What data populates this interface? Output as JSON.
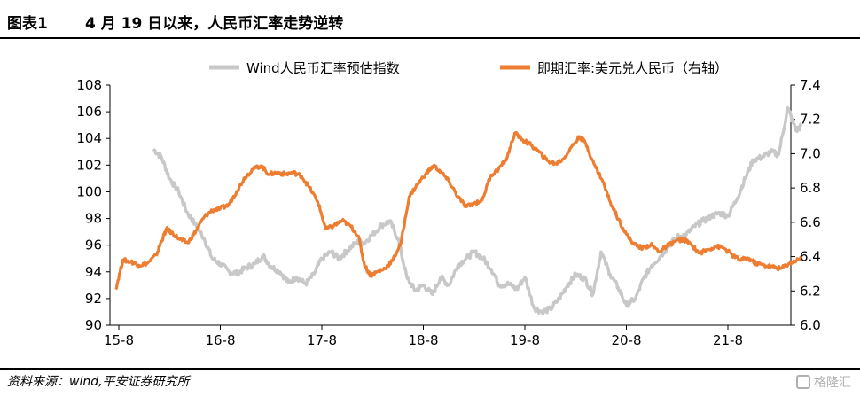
{
  "header": {
    "figure_label": "图表1",
    "figure_title": "4 月 19 日以来，人民币汇率走势逆转"
  },
  "footer": {
    "source": "资料来源：wind,平安证券研究所",
    "watermark": "格隆汇"
  },
  "colors": {
    "wind_index": "#c8c8c8",
    "spot_rate": "#ed7d31"
  },
  "chart_data": {
    "type": "line",
    "title": "",
    "x_ticks": [
      "15-8",
      "16-8",
      "17-8",
      "18-8",
      "19-8",
      "20-8",
      "21-8"
    ],
    "y_left": {
      "min": 90,
      "max": 108,
      "ticks": [
        "90",
        "92",
        "94",
        "96",
        "98",
        "100",
        "102",
        "104",
        "106",
        "108"
      ]
    },
    "y_right": {
      "min": 6.0,
      "max": 7.4,
      "ticks": [
        "6.0",
        "6.2",
        "6.4",
        "6.6",
        "6.8",
        "7.0",
        "7.2",
        "7.4"
      ]
    },
    "legend_position": "top",
    "series": [
      {
        "name": "Wind人民币汇率预估指数",
        "axis": "left",
        "color": "#c8c8c8",
        "points": [
          [
            2015.92,
            103.2
          ],
          [
            2016.0,
            102.6
          ],
          [
            2016.08,
            101.0
          ],
          [
            2016.17,
            100.0
          ],
          [
            2016.25,
            98.5
          ],
          [
            2016.33,
            97.6
          ],
          [
            2016.42,
            96.5
          ],
          [
            2016.5,
            95.0
          ],
          [
            2016.58,
            94.6
          ],
          [
            2016.67,
            94.0
          ],
          [
            2016.75,
            93.9
          ],
          [
            2016.83,
            94.3
          ],
          [
            2016.92,
            94.6
          ],
          [
            2017.0,
            95.2
          ],
          [
            2017.08,
            94.4
          ],
          [
            2017.17,
            94.0
          ],
          [
            2017.25,
            93.2
          ],
          [
            2017.33,
            93.6
          ],
          [
            2017.42,
            93.1
          ],
          [
            2017.5,
            93.8
          ],
          [
            2017.58,
            95.0
          ],
          [
            2017.67,
            95.5
          ],
          [
            2017.75,
            95.0
          ],
          [
            2017.83,
            95.6
          ],
          [
            2017.92,
            96.2
          ],
          [
            2018.0,
            96.2
          ],
          [
            2018.08,
            96.8
          ],
          [
            2018.17,
            97.5
          ],
          [
            2018.25,
            97.8
          ],
          [
            2018.33,
            96.5
          ],
          [
            2018.42,
            93.5
          ],
          [
            2018.5,
            92.6
          ],
          [
            2018.58,
            93.0
          ],
          [
            2018.67,
            92.3
          ],
          [
            2018.75,
            93.6
          ],
          [
            2018.83,
            93.0
          ],
          [
            2018.92,
            94.5
          ],
          [
            2019.0,
            95.0
          ],
          [
            2019.08,
            95.5
          ],
          [
            2019.17,
            95.0
          ],
          [
            2019.25,
            94.2
          ],
          [
            2019.33,
            93.0
          ],
          [
            2019.42,
            93.1
          ],
          [
            2019.5,
            92.7
          ],
          [
            2019.58,
            93.6
          ],
          [
            2019.67,
            91.3
          ],
          [
            2019.75,
            91.0
          ],
          [
            2019.83,
            91.2
          ],
          [
            2019.92,
            92.0
          ],
          [
            2020.0,
            93.0
          ],
          [
            2020.08,
            93.8
          ],
          [
            2020.17,
            93.5
          ],
          [
            2020.25,
            92.3
          ],
          [
            2020.33,
            95.5
          ],
          [
            2020.42,
            93.8
          ],
          [
            2020.5,
            92.8
          ],
          [
            2020.58,
            91.5
          ],
          [
            2020.67,
            92.0
          ],
          [
            2020.75,
            93.5
          ],
          [
            2020.83,
            94.5
          ],
          [
            2020.92,
            95.2
          ],
          [
            2021.0,
            96.0
          ],
          [
            2021.08,
            96.6
          ],
          [
            2021.17,
            96.8
          ],
          [
            2021.25,
            97.4
          ],
          [
            2021.33,
            97.8
          ],
          [
            2021.42,
            98.2
          ],
          [
            2021.5,
            98.4
          ],
          [
            2021.58,
            98.2
          ],
          [
            2021.67,
            99.5
          ],
          [
            2021.75,
            101.0
          ],
          [
            2021.83,
            102.4
          ],
          [
            2021.92,
            102.6
          ],
          [
            2022.0,
            103.0
          ],
          [
            2022.08,
            102.8
          ],
          [
            2022.17,
            106.3
          ],
          [
            2022.25,
            104.6
          ],
          [
            2022.3,
            104.9
          ]
        ]
      },
      {
        "name": "即期汇率:美元兑人民币（右轴）",
        "axis": "right",
        "color": "#ed7d31",
        "points": [
          [
            2015.55,
            6.21
          ],
          [
            2015.62,
            6.38
          ],
          [
            2015.7,
            6.37
          ],
          [
            2015.78,
            6.35
          ],
          [
            2015.86,
            6.36
          ],
          [
            2015.95,
            6.41
          ],
          [
            2016.0,
            6.49
          ],
          [
            2016.05,
            6.56
          ],
          [
            2016.1,
            6.54
          ],
          [
            2016.18,
            6.5
          ],
          [
            2016.26,
            6.48
          ],
          [
            2016.34,
            6.55
          ],
          [
            2016.42,
            6.63
          ],
          [
            2016.5,
            6.67
          ],
          [
            2016.58,
            6.68
          ],
          [
            2016.66,
            6.7
          ],
          [
            2016.74,
            6.78
          ],
          [
            2016.82,
            6.86
          ],
          [
            2016.9,
            6.91
          ],
          [
            2016.98,
            6.93
          ],
          [
            2017.06,
            6.88
          ],
          [
            2017.14,
            6.89
          ],
          [
            2017.22,
            6.88
          ],
          [
            2017.3,
            6.89
          ],
          [
            2017.38,
            6.87
          ],
          [
            2017.46,
            6.8
          ],
          [
            2017.54,
            6.72
          ],
          [
            2017.62,
            6.56
          ],
          [
            2017.7,
            6.58
          ],
          [
            2017.78,
            6.61
          ],
          [
            2017.86,
            6.58
          ],
          [
            2017.94,
            6.52
          ],
          [
            2018.0,
            6.35
          ],
          [
            2018.06,
            6.29
          ],
          [
            2018.12,
            6.31
          ],
          [
            2018.2,
            6.33
          ],
          [
            2018.28,
            6.38
          ],
          [
            2018.36,
            6.48
          ],
          [
            2018.44,
            6.75
          ],
          [
            2018.52,
            6.82
          ],
          [
            2018.6,
            6.88
          ],
          [
            2018.68,
            6.93
          ],
          [
            2018.76,
            6.89
          ],
          [
            2018.84,
            6.83
          ],
          [
            2018.92,
            6.75
          ],
          [
            2019.0,
            6.69
          ],
          [
            2019.08,
            6.71
          ],
          [
            2019.16,
            6.73
          ],
          [
            2019.24,
            6.87
          ],
          [
            2019.32,
            6.91
          ],
          [
            2019.4,
            6.97
          ],
          [
            2019.48,
            7.12
          ],
          [
            2019.56,
            7.08
          ],
          [
            2019.64,
            7.05
          ],
          [
            2019.72,
            7.01
          ],
          [
            2019.8,
            6.96
          ],
          [
            2019.88,
            6.94
          ],
          [
            2019.96,
            6.97
          ],
          [
            2020.04,
            7.04
          ],
          [
            2020.12,
            7.1
          ],
          [
            2020.18,
            7.06
          ],
          [
            2020.26,
            6.94
          ],
          [
            2020.34,
            6.85
          ],
          [
            2020.42,
            6.72
          ],
          [
            2020.5,
            6.62
          ],
          [
            2020.58,
            6.53
          ],
          [
            2020.66,
            6.47
          ],
          [
            2020.74,
            6.45
          ],
          [
            2020.82,
            6.47
          ],
          [
            2020.9,
            6.43
          ],
          [
            2020.98,
            6.46
          ],
          [
            2021.06,
            6.49
          ],
          [
            2021.14,
            6.5
          ],
          [
            2021.22,
            6.47
          ],
          [
            2021.3,
            6.42
          ],
          [
            2021.38,
            6.44
          ],
          [
            2021.46,
            6.46
          ],
          [
            2021.54,
            6.45
          ],
          [
            2021.62,
            6.41
          ],
          [
            2021.7,
            6.38
          ],
          [
            2021.78,
            6.39
          ],
          [
            2021.86,
            6.36
          ],
          [
            2021.94,
            6.35
          ],
          [
            2022.02,
            6.34
          ],
          [
            2022.1,
            6.33
          ],
          [
            2022.18,
            6.36
          ],
          [
            2022.26,
            6.38
          ],
          [
            2022.3,
            6.39
          ]
        ]
      }
    ]
  }
}
